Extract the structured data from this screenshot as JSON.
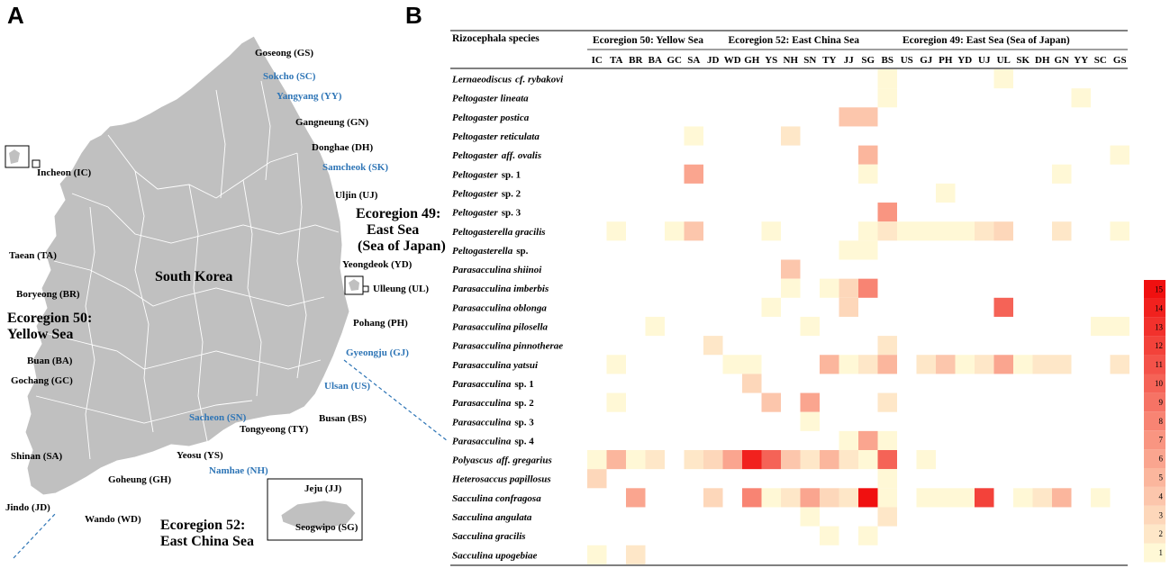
{
  "panels": {
    "a": "A",
    "b": "B"
  },
  "map": {
    "country_label": "South Korea",
    "sites": [
      {
        "name": "Goseong (GS)",
        "color": "#000000"
      },
      {
        "name": "Sokcho (SC)",
        "color": "#2e75b6"
      },
      {
        "name": "Yangyang (YY)",
        "color": "#2e75b6"
      },
      {
        "name": "Gangneung (GN)",
        "color": "#000000"
      },
      {
        "name": "Donghae (DH)",
        "color": "#000000"
      },
      {
        "name": "Samcheok (SK)",
        "color": "#2e75b6"
      },
      {
        "name": "Uljin (UJ)",
        "color": "#000000"
      },
      {
        "name": "Yeongdeok (YD)",
        "color": "#000000"
      },
      {
        "name": "Ulleung (UL)",
        "color": "#000000"
      },
      {
        "name": "Pohang (PH)",
        "color": "#000000"
      },
      {
        "name": "Gyeongju (GJ)",
        "color": "#2e75b6"
      },
      {
        "name": "Ulsan (US)",
        "color": "#2e75b6"
      },
      {
        "name": "Busan (BS)",
        "color": "#000000"
      },
      {
        "name": "Incheon (IC)",
        "color": "#000000"
      },
      {
        "name": "Taean (TA)",
        "color": "#000000"
      },
      {
        "name": "Boryeong (BR)",
        "color": "#000000"
      },
      {
        "name": "Buan (BA)",
        "color": "#000000"
      },
      {
        "name": "Gochang (GC)",
        "color": "#000000"
      },
      {
        "name": "Shinan (SA)",
        "color": "#000000"
      },
      {
        "name": "Jindo (JD)",
        "color": "#000000"
      },
      {
        "name": "Wando (WD)",
        "color": "#000000"
      },
      {
        "name": "Goheung (GH)",
        "color": "#000000"
      },
      {
        "name": "Yeosu (YS)",
        "color": "#000000"
      },
      {
        "name": "Namhae (NH)",
        "color": "#2e75b6"
      },
      {
        "name": "Sacheon (SN)",
        "color": "#2e75b6"
      },
      {
        "name": "Tongyeong (TY)",
        "color": "#000000"
      },
      {
        "name": "Jeju (JJ)",
        "color": "#000000"
      },
      {
        "name": "Seogwipo (SG)",
        "color": "#000000"
      }
    ],
    "ecoregions": {
      "east_1": "Ecoregion 49:",
      "east_2": "East Sea",
      "east_3": "(Sea of Japan)",
      "yellow_1": "Ecoregion 50:",
      "yellow_2": "Yellow Sea",
      "ecs_1": "Ecoregion 52:",
      "ecs_2": "East China Sea"
    },
    "colors": {
      "land": "#c0c0c0",
      "border": "#ffffff",
      "blue_label": "#2e75b6"
    }
  },
  "chart_data": {
    "type": "heatmap",
    "row_header": "Rizocephala species",
    "column_groups": [
      {
        "label": "Ecoregion 50: Yellow Sea",
        "columns": [
          "IC",
          "TA",
          "BR",
          "BA",
          "GC",
          "SA",
          "JD"
        ]
      },
      {
        "label": "Ecoregion 52: East China Sea",
        "columns": [
          "WD",
          "GH",
          "YS",
          "NH",
          "SN",
          "TY",
          "JJ",
          "SG",
          "BS"
        ]
      },
      {
        "label": "Ecoregion 49: East Sea (Sea of Japan)",
        "columns": [
          "US",
          "GJ",
          "PH",
          "YD",
          "UJ",
          "UL",
          "SK",
          "DH",
          "GN",
          "YY",
          "SC",
          "GS"
        ]
      }
    ],
    "columns": [
      "IC",
      "TA",
      "BR",
      "BA",
      "GC",
      "SA",
      "JD",
      "WD",
      "GH",
      "YS",
      "NH",
      "SN",
      "TY",
      "JJ",
      "SG",
      "BS",
      "US",
      "GJ",
      "PH",
      "YD",
      "UJ",
      "UL",
      "SK",
      "DH",
      "GN",
      "YY",
      "SC",
      "GS"
    ],
    "rows": [
      {
        "genus": "Lernaeodiscus",
        "suffix": "cf. rybakovi",
        "suffix_italic": true,
        "values": [
          0,
          0,
          0,
          0,
          0,
          0,
          0,
          0,
          0,
          0,
          0,
          0,
          0,
          0,
          0,
          1,
          0,
          0,
          0,
          0,
          0,
          1,
          0,
          0,
          0,
          0,
          0,
          0
        ]
      },
      {
        "genus": "Peltogaster lineata",
        "suffix": "",
        "suffix_italic": false,
        "values": [
          0,
          0,
          0,
          0,
          0,
          0,
          0,
          0,
          0,
          0,
          0,
          0,
          0,
          0,
          0,
          1,
          0,
          0,
          0,
          0,
          0,
          0,
          0,
          0,
          0,
          1,
          0,
          0
        ]
      },
      {
        "genus": "Peltogaster postica",
        "suffix": "",
        "suffix_italic": false,
        "values": [
          0,
          0,
          0,
          0,
          0,
          0,
          0,
          0,
          0,
          0,
          0,
          0,
          0,
          4,
          4,
          0,
          0,
          0,
          0,
          0,
          0,
          0,
          0,
          0,
          0,
          0,
          0,
          0
        ]
      },
      {
        "genus": "Peltogaster reticulata",
        "suffix": "",
        "suffix_italic": false,
        "values": [
          0,
          0,
          0,
          0,
          0,
          1,
          0,
          0,
          0,
          0,
          2,
          0,
          0,
          0,
          0,
          0,
          0,
          0,
          0,
          0,
          0,
          0,
          0,
          0,
          0,
          0,
          0,
          0
        ]
      },
      {
        "genus": "Peltogaster",
        "suffix": "aff. ovalis",
        "suffix_italic": true,
        "values": [
          0,
          0,
          0,
          0,
          0,
          0,
          0,
          0,
          0,
          0,
          0,
          0,
          0,
          0,
          5,
          0,
          0,
          0,
          0,
          0,
          0,
          0,
          0,
          0,
          0,
          0,
          0,
          1
        ]
      },
      {
        "genus": "Peltogaster",
        "suffix": "sp. 1",
        "suffix_italic": false,
        "values": [
          0,
          0,
          0,
          0,
          0,
          6,
          0,
          0,
          0,
          0,
          0,
          0,
          0,
          0,
          1,
          0,
          0,
          0,
          0,
          0,
          0,
          0,
          0,
          0,
          1,
          0,
          0,
          0
        ]
      },
      {
        "genus": "Peltogaster",
        "suffix": "sp. 2",
        "suffix_italic": false,
        "values": [
          0,
          0,
          0,
          0,
          0,
          0,
          0,
          0,
          0,
          0,
          0,
          0,
          0,
          0,
          0,
          0,
          0,
          0,
          1,
          0,
          0,
          0,
          0,
          0,
          0,
          0,
          0,
          0
        ]
      },
      {
        "genus": "Peltogaster",
        "suffix": "sp. 3",
        "suffix_italic": false,
        "values": [
          0,
          0,
          0,
          0,
          0,
          0,
          0,
          0,
          0,
          0,
          0,
          0,
          0,
          0,
          0,
          7,
          0,
          0,
          0,
          0,
          0,
          0,
          0,
          0,
          0,
          0,
          0,
          0
        ]
      },
      {
        "genus": "Peltogasterella gracilis",
        "suffix": "",
        "suffix_italic": false,
        "values": [
          0,
          1,
          0,
          0,
          1,
          4,
          0,
          0,
          0,
          1,
          0,
          0,
          0,
          0,
          1,
          2,
          1,
          1,
          1,
          1,
          2,
          3,
          0,
          0,
          2,
          0,
          0,
          1
        ]
      },
      {
        "genus": "Peltogasterella",
        "suffix": "sp.",
        "suffix_italic": false,
        "values": [
          0,
          0,
          0,
          0,
          0,
          0,
          0,
          0,
          0,
          0,
          0,
          0,
          0,
          1,
          1,
          0,
          0,
          0,
          0,
          0,
          0,
          0,
          0,
          0,
          0,
          0,
          0,
          0
        ]
      },
      {
        "genus": "Parasacculina shiinoi",
        "suffix": "",
        "suffix_italic": false,
        "values": [
          0,
          0,
          0,
          0,
          0,
          0,
          0,
          0,
          0,
          0,
          4,
          0,
          0,
          0,
          0,
          0,
          0,
          0,
          0,
          0,
          0,
          0,
          0,
          0,
          0,
          0,
          0,
          0
        ]
      },
      {
        "genus": "Parasacculina imberbis",
        "suffix": "",
        "suffix_italic": false,
        "values": [
          0,
          0,
          0,
          0,
          0,
          0,
          0,
          0,
          0,
          0,
          1,
          0,
          1,
          3,
          8,
          0,
          0,
          0,
          0,
          0,
          0,
          0,
          0,
          0,
          0,
          0,
          0,
          0
        ]
      },
      {
        "genus": "Parasacculina oblonga",
        "suffix": "",
        "suffix_italic": false,
        "values": [
          0,
          0,
          0,
          0,
          0,
          0,
          0,
          0,
          0,
          1,
          0,
          0,
          0,
          3,
          0,
          0,
          0,
          0,
          0,
          0,
          0,
          10,
          0,
          0,
          0,
          0,
          0,
          0
        ]
      },
      {
        "genus": "Parasacculina pilosella",
        "suffix": "",
        "suffix_italic": false,
        "values": [
          0,
          0,
          0,
          1,
          0,
          0,
          0,
          0,
          0,
          0,
          0,
          1,
          0,
          0,
          0,
          0,
          0,
          0,
          0,
          0,
          0,
          0,
          0,
          0,
          0,
          0,
          1,
          1
        ]
      },
      {
        "genus": "Parasacculina pinnotherae",
        "suffix": "",
        "suffix_italic": false,
        "values": [
          0,
          0,
          0,
          0,
          0,
          0,
          2,
          0,
          0,
          0,
          0,
          0,
          0,
          0,
          0,
          2,
          0,
          0,
          0,
          0,
          0,
          0,
          0,
          0,
          0,
          0,
          0,
          0
        ]
      },
      {
        "genus": "Parasacculina yatsui",
        "suffix": "",
        "suffix_italic": false,
        "values": [
          0,
          1,
          0,
          0,
          0,
          0,
          0,
          1,
          1,
          0,
          0,
          0,
          5,
          1,
          2,
          5,
          0,
          2,
          4,
          1,
          2,
          6,
          1,
          2,
          2,
          0,
          0,
          2
        ]
      },
      {
        "genus": "Parasacculina",
        "suffix": "sp. 1",
        "suffix_italic": false,
        "values": [
          0,
          0,
          0,
          0,
          0,
          0,
          0,
          0,
          3,
          0,
          0,
          0,
          0,
          0,
          0,
          0,
          0,
          0,
          0,
          0,
          0,
          0,
          0,
          0,
          0,
          0,
          0,
          0
        ]
      },
      {
        "genus": "Parasacculina",
        "suffix": "sp. 2",
        "suffix_italic": false,
        "values": [
          0,
          1,
          0,
          0,
          0,
          0,
          0,
          0,
          0,
          4,
          0,
          6,
          0,
          0,
          0,
          2,
          0,
          0,
          0,
          0,
          0,
          0,
          0,
          0,
          0,
          0,
          0,
          0
        ]
      },
      {
        "genus": "Parasacculina",
        "suffix": "sp. 3",
        "suffix_italic": false,
        "values": [
          0,
          0,
          0,
          0,
          0,
          0,
          0,
          0,
          0,
          0,
          0,
          1,
          0,
          0,
          0,
          0,
          0,
          0,
          0,
          0,
          0,
          0,
          0,
          0,
          0,
          0,
          0,
          0
        ]
      },
      {
        "genus": "Parasacculina",
        "suffix": "sp. 4",
        "suffix_italic": false,
        "values": [
          0,
          0,
          0,
          0,
          0,
          0,
          0,
          0,
          0,
          0,
          0,
          0,
          0,
          1,
          6,
          1,
          0,
          0,
          0,
          0,
          0,
          0,
          0,
          0,
          0,
          0,
          0,
          0
        ]
      },
      {
        "genus": "Polyascus",
        "suffix": "aff. gregarius",
        "suffix_italic": true,
        "values": [
          1,
          5,
          1,
          2,
          0,
          2,
          3,
          6,
          14,
          10,
          4,
          2,
          5,
          2,
          1,
          10,
          0,
          1,
          0,
          0,
          0,
          0,
          0,
          0,
          0,
          0,
          0,
          0
        ]
      },
      {
        "genus": "Heterosaccus papillosus",
        "suffix": "",
        "suffix_italic": false,
        "values": [
          3,
          0,
          0,
          0,
          0,
          0,
          0,
          0,
          0,
          0,
          0,
          0,
          0,
          0,
          0,
          1,
          0,
          0,
          0,
          0,
          0,
          0,
          0,
          0,
          0,
          0,
          0,
          0
        ]
      },
      {
        "genus": "Sacculina confragosa",
        "suffix": "",
        "suffix_italic": false,
        "values": [
          0,
          0,
          6,
          0,
          0,
          0,
          3,
          0,
          8,
          1,
          2,
          6,
          3,
          2,
          15,
          1,
          0,
          1,
          1,
          1,
          12,
          0,
          1,
          2,
          5,
          0,
          1,
          0
        ]
      },
      {
        "genus": "Sacculina angulata",
        "suffix": "",
        "suffix_italic": false,
        "values": [
          0,
          0,
          0,
          0,
          0,
          0,
          0,
          0,
          0,
          0,
          0,
          1,
          0,
          0,
          0,
          2,
          0,
          0,
          0,
          0,
          0,
          0,
          0,
          0,
          0,
          0,
          0,
          0
        ]
      },
      {
        "genus": "Sacculina gracilis",
        "suffix": "",
        "suffix_italic": false,
        "values": [
          0,
          0,
          0,
          0,
          0,
          0,
          0,
          0,
          0,
          0,
          0,
          0,
          1,
          0,
          1,
          0,
          0,
          0,
          0,
          0,
          0,
          0,
          0,
          0,
          0,
          0,
          0,
          0
        ]
      },
      {
        "genus": "Sacculina upogebiae",
        "suffix": "",
        "suffix_italic": false,
        "values": [
          1,
          0,
          2,
          0,
          0,
          0,
          0,
          0,
          0,
          0,
          0,
          0,
          0,
          0,
          0,
          0,
          0,
          0,
          0,
          0,
          0,
          0,
          0,
          0,
          0,
          0,
          0,
          0
        ]
      }
    ],
    "legend": {
      "min": 1,
      "max": 15,
      "ticks": [
        1,
        2,
        3,
        4,
        5,
        6,
        7,
        8,
        9,
        10,
        11,
        12,
        13,
        14,
        15
      ],
      "color_low": "#fff8d6",
      "color_high": "#f01010"
    }
  }
}
